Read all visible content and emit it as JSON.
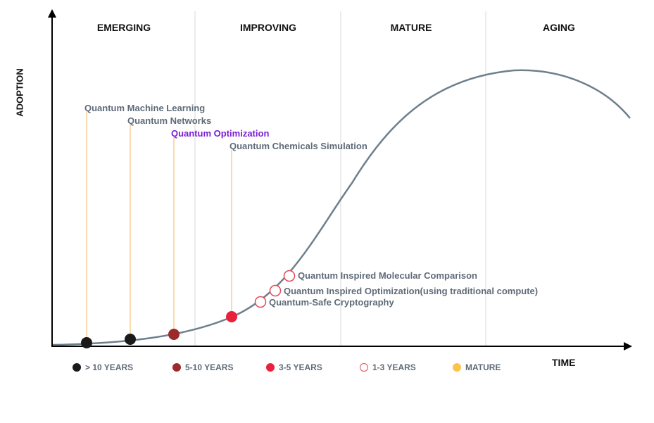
{
  "phases": [
    "EMERGING",
    "IMPROVING",
    "MATURE",
    "AGING"
  ],
  "axes": {
    "y": "ADOPTION",
    "x": "TIME"
  },
  "technologies_upper": [
    {
      "label": "Quantum Machine Learning",
      "status": "> 10 YEARS",
      "highlight": false
    },
    {
      "label": "Quantum Networks",
      "status": "> 10 YEARS",
      "highlight": false
    },
    {
      "label": "Quantum Optimization",
      "status": "5-10 YEARS",
      "highlight": true
    },
    {
      "label": "Quantum Chemicals Simulation",
      "status": "3-5 YEARS",
      "highlight": false
    }
  ],
  "technologies_lower": [
    {
      "label": "Quantum Inspired Molecular Comparison",
      "status": "1-3 YEARS"
    },
    {
      "label": "Quantum Inspired Optimization(using traditional compute)",
      "status": "1-3 YEARS"
    },
    {
      "label": "Quantum-Safe Cryptography",
      "status": "1-3 YEARS"
    }
  ],
  "legend": [
    {
      "label": "> 10 YEARS",
      "color": "#1a1a1a",
      "hollow": false
    },
    {
      "label": "5-10 YEARS",
      "color": "#9b2a2a",
      "hollow": false
    },
    {
      "label": "3-5 YEARS",
      "color": "#e8213c",
      "hollow": false
    },
    {
      "label": "1-3 YEARS",
      "color": "#e14b5a",
      "hollow": true
    },
    {
      "label": "MATURE",
      "color": "#fdc24b",
      "hollow": false
    }
  ],
  "colors": {
    "curve": "#6e7f8c",
    "leader": "#f4c27a",
    "accent_text": "#7b1fd1",
    "label_text": "#5f6b78"
  }
}
